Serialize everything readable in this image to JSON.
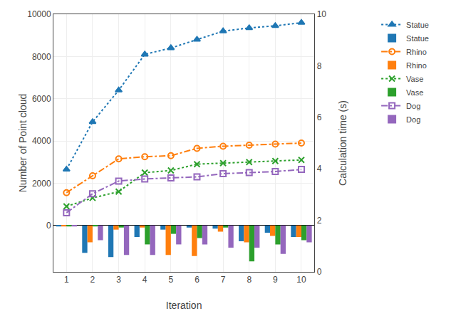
{
  "chart_data": {
    "type": "bar",
    "xlabel": "Iteration",
    "ylabel": "Number of Point cloud",
    "y2label": "Calculation time (s)",
    "x": [
      1,
      2,
      3,
      4,
      5,
      6,
      7,
      8,
      9,
      10
    ],
    "series": [
      {
        "name": "Statue",
        "type": "bar",
        "color": "#1f77b4",
        "values": [
          -50,
          -1300,
          -1500,
          -550,
          -200,
          -100,
          -150,
          -750,
          -350,
          -550
        ]
      },
      {
        "name": "Rhino",
        "type": "bar",
        "color": "#ff7f0e",
        "values": [
          -50,
          -800,
          -200,
          -100,
          -1400,
          -1450,
          -300,
          -800,
          -500,
          -550
        ]
      },
      {
        "name": "Vase",
        "type": "bar",
        "color": "#2ca02c",
        "values": [
          -50,
          -50,
          -100,
          -900,
          -400,
          -600,
          -100,
          -1700,
          -900,
          -700
        ]
      },
      {
        "name": "Dog",
        "type": "bar",
        "color": "#9467bd",
        "values": [
          -50,
          -700,
          -1400,
          -1400,
          -900,
          -900,
          -1050,
          -1050,
          -1350,
          -800
        ]
      },
      {
        "name": "Statue",
        "type": "line",
        "color": "#1f77b4",
        "marker": "triangle",
        "line_style": "dotted",
        "values": [
          2650,
          4900,
          6400,
          8100,
          8400,
          8800,
          9200,
          9350,
          9450,
          9600
        ]
      },
      {
        "name": "Rhino",
        "type": "line",
        "color": "#ff7f0e",
        "marker": "circle",
        "line_style": "dashdot",
        "values": [
          1550,
          2350,
          3150,
          3250,
          3300,
          3650,
          3750,
          3800,
          3850,
          3900
        ]
      },
      {
        "name": "Vase",
        "type": "line",
        "color": "#2ca02c",
        "marker": "x",
        "line_style": "dotted",
        "values": [
          900,
          1300,
          1600,
          2500,
          2600,
          2900,
          2950,
          3000,
          3050,
          3100
        ]
      },
      {
        "name": "Dog",
        "type": "line",
        "color": "#9467bd",
        "marker": "square",
        "line_style": "dashdot",
        "values": [
          600,
          1500,
          2100,
          2200,
          2250,
          2300,
          2450,
          2500,
          2550,
          2650
        ]
      }
    ],
    "xlim": [
      0.5,
      10.5
    ],
    "xticks": [
      1,
      2,
      3,
      4,
      5,
      6,
      7,
      8,
      9,
      10
    ],
    "ylim": [
      -2200,
      10000
    ],
    "yticks": [
      0,
      2000,
      4000,
      6000,
      8000,
      10000
    ],
    "y2lim": [
      0,
      10
    ],
    "y2ticks": [
      0,
      2,
      4,
      6,
      8,
      10
    ],
    "grid": true,
    "legend": "upper right"
  }
}
